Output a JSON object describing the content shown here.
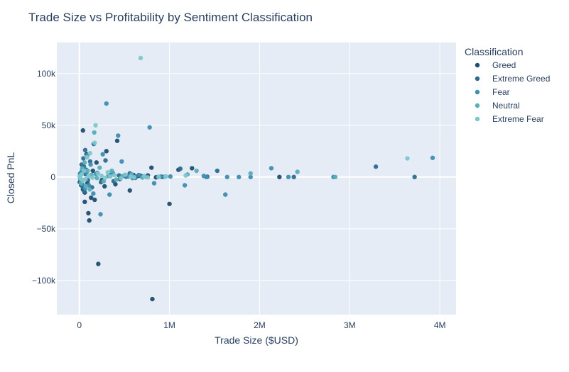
{
  "chart_data": {
    "type": "scatter",
    "title": "Trade Size vs Profitability by Sentiment Classification",
    "xlabel": "Trade Size ($USD)",
    "ylabel": "Closed PnL",
    "xlim": [
      -250000,
      4180000
    ],
    "ylim": [
      -133000,
      130000
    ],
    "x_ticks": [
      0,
      1000000,
      2000000,
      3000000,
      4000000
    ],
    "x_tick_labels": [
      "0",
      "1M",
      "2M",
      "3M",
      "4M"
    ],
    "y_ticks": [
      100000,
      50000,
      0,
      -50000,
      -100000
    ],
    "y_tick_labels": [
      "100k",
      "50k",
      "0",
      "−50k",
      "−100k"
    ],
    "grid": true,
    "legend_title": "Classification",
    "legend_position": "right",
    "background_color": "#e5ecf6",
    "series": [
      {
        "name": "Greed",
        "color": "#1f4e6e",
        "points": [
          [
            5000,
            -5000
          ],
          [
            12000,
            2000
          ],
          [
            20000,
            -8000
          ],
          [
            30000,
            5000
          ],
          [
            40000,
            -12000
          ],
          [
            50000,
            10000
          ],
          [
            60000,
            -15000
          ],
          [
            70000,
            3000
          ],
          [
            80000,
            22000
          ],
          [
            90000,
            -6000
          ],
          [
            100000,
            -35000
          ],
          [
            110000,
            -42000
          ],
          [
            130000,
            -20000
          ],
          [
            150000,
            6000
          ],
          [
            170000,
            -22000
          ],
          [
            190000,
            14000
          ],
          [
            210000,
            -84000
          ],
          [
            250000,
            -3000
          ],
          [
            280000,
            -9000
          ],
          [
            300000,
            25000
          ],
          [
            350000,
            2000
          ],
          [
            400000,
            -7000
          ],
          [
            420000,
            35000
          ],
          [
            450000,
            -2000
          ],
          [
            500000,
            1500
          ],
          [
            560000,
            -13000
          ],
          [
            600000,
            2000
          ],
          [
            650000,
            1000
          ],
          [
            700000,
            500
          ],
          [
            760000,
            1500
          ],
          [
            800000,
            9000
          ],
          [
            810000,
            -118000
          ],
          [
            850000,
            -300
          ],
          [
            920000,
            200
          ],
          [
            1000000,
            -26000
          ],
          [
            1100000,
            7000
          ],
          [
            1250000,
            8500
          ],
          [
            2220000,
            0
          ],
          [
            60000,
            -24000
          ],
          [
            40000,
            45000
          ]
        ]
      },
      {
        "name": "Extreme Greed",
        "color": "#2d6a8f",
        "points": [
          [
            8000,
            3000
          ],
          [
            18000,
            -4000
          ],
          [
            25000,
            12000
          ],
          [
            35000,
            -9000
          ],
          [
            45000,
            18000
          ],
          [
            55000,
            -14000
          ],
          [
            65000,
            26000
          ],
          [
            75000,
            7000
          ],
          [
            95000,
            -3000
          ],
          [
            120000,
            15000
          ],
          [
            140000,
            -10000
          ],
          [
            160000,
            32000
          ],
          [
            200000,
            4000
          ],
          [
            240000,
            -5000
          ],
          [
            290000,
            16000
          ],
          [
            330000,
            1000
          ],
          [
            380000,
            -4000
          ],
          [
            440000,
            1500
          ],
          [
            520000,
            300
          ],
          [
            560000,
            3500
          ],
          [
            620000,
            -800
          ],
          [
            680000,
            1200
          ],
          [
            740000,
            400
          ],
          [
            870000,
            0
          ],
          [
            1120000,
            8000
          ],
          [
            1420000,
            300
          ],
          [
            1530000,
            6000
          ],
          [
            2380000,
            0
          ],
          [
            3290000,
            10000
          ],
          [
            3720000,
            0
          ]
        ]
      },
      {
        "name": "Fear",
        "color": "#3d8eaf",
        "points": [
          [
            10000,
            -2000
          ],
          [
            22000,
            5000
          ],
          [
            33000,
            -7000
          ],
          [
            48000,
            9000
          ],
          [
            62000,
            -11000
          ],
          [
            78000,
            4000
          ],
          [
            88000,
            21000
          ],
          [
            105000,
            -8000
          ],
          [
            125000,
            12000
          ],
          [
            155000,
            -16000
          ],
          [
            185000,
            3000
          ],
          [
            235000,
            -36000
          ],
          [
            260000,
            22000
          ],
          [
            300000,
            71000
          ],
          [
            335000,
            -17000
          ],
          [
            370000,
            4000
          ],
          [
            430000,
            40000
          ],
          [
            470000,
            15000
          ],
          [
            540000,
            500
          ],
          [
            590000,
            -1000
          ],
          [
            660000,
            2000
          ],
          [
            780000,
            48000
          ],
          [
            830000,
            -6000
          ],
          [
            900000,
            400
          ],
          [
            1010000,
            500
          ],
          [
            1170000,
            -8000
          ],
          [
            1380000,
            1000
          ],
          [
            1410000,
            0
          ],
          [
            1620000,
            -17000
          ],
          [
            1640000,
            0
          ],
          [
            1770000,
            0
          ],
          [
            1900000,
            0
          ],
          [
            2130000,
            8500
          ],
          [
            2320000,
            0
          ],
          [
            2820000,
            0
          ],
          [
            3920000,
            18500
          ]
        ]
      },
      {
        "name": "Neutral",
        "color": "#5aaeb8",
        "points": [
          [
            6000,
            1500
          ],
          [
            16000,
            -6000
          ],
          [
            28000,
            8000
          ],
          [
            42000,
            -3000
          ],
          [
            58000,
            14000
          ],
          [
            72000,
            -9000
          ],
          [
            92000,
            6000
          ],
          [
            115000,
            -12000
          ],
          [
            135000,
            2000
          ],
          [
            165000,
            43000
          ],
          [
            195000,
            -1000
          ],
          [
            225000,
            9000
          ],
          [
            270000,
            -4000
          ],
          [
            320000,
            1000
          ],
          [
            360000,
            6000
          ],
          [
            410000,
            -2500
          ],
          [
            480000,
            800
          ],
          [
            580000,
            2500
          ],
          [
            700000,
            -500
          ],
          [
            950000,
            300
          ],
          [
            1200000,
            2500
          ],
          [
            1300000,
            6000
          ],
          [
            1900000,
            3500
          ],
          [
            2420000,
            5000
          ],
          [
            2840000,
            0
          ]
        ]
      },
      {
        "name": "Extreme Fear",
        "color": "#7fc6cc",
        "points": [
          [
            4000,
            500
          ],
          [
            14000,
            -1500
          ],
          [
            26000,
            2500
          ],
          [
            38000,
            -3500
          ],
          [
            52000,
            6000
          ],
          [
            68000,
            -2000
          ],
          [
            85000,
            19000
          ],
          [
            100000,
            1000
          ],
          [
            118000,
            23000
          ],
          [
            145000,
            -500
          ],
          [
            170000,
            33000
          ],
          [
            180000,
            50000
          ],
          [
            205000,
            3500
          ],
          [
            245000,
            1200
          ],
          [
            285000,
            -800
          ],
          [
            315000,
            4500
          ],
          [
            345000,
            700
          ],
          [
            390000,
            1800
          ],
          [
            460000,
            -1200
          ],
          [
            510000,
            2200
          ],
          [
            570000,
            400
          ],
          [
            610000,
            -300
          ],
          [
            680000,
            115000
          ],
          [
            720000,
            900
          ],
          [
            760000,
            -400
          ],
          [
            880000,
            150
          ],
          [
            960000,
            600
          ],
          [
            1180000,
            1500
          ],
          [
            3640000,
            18000
          ]
        ]
      }
    ]
  }
}
